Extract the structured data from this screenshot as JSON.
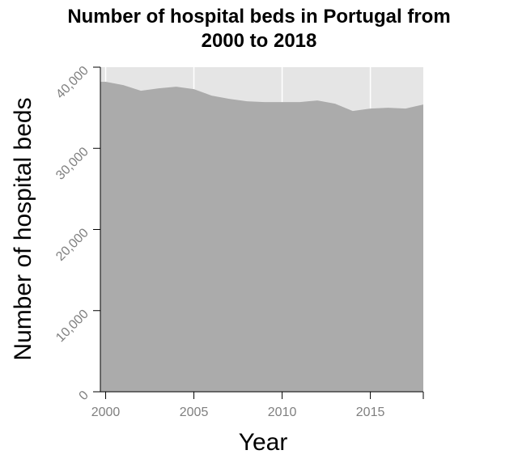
{
  "chart_data": {
    "type": "area",
    "title_lines": [
      "Number of hospital beds in Portugal from",
      "2000 to 2018"
    ],
    "xlabel": "Year",
    "ylabel": "Number of hospital beds",
    "x": [
      2000,
      2001,
      2002,
      2003,
      2004,
      2005,
      2006,
      2007,
      2008,
      2009,
      2010,
      2011,
      2012,
      2013,
      2014,
      2015,
      2016,
      2017,
      2018
    ],
    "values": [
      38200,
      37800,
      37100,
      37400,
      37600,
      37300,
      36500,
      36100,
      35800,
      35700,
      35700,
      35700,
      35900,
      35500,
      34600,
      34900,
      35000,
      34900,
      35400
    ],
    "xlim": [
      1999.7,
      2018.0
    ],
    "ylim": [
      0,
      40000
    ],
    "x_ticks": [
      2000,
      2005,
      2010,
      2015
    ],
    "x_tick_labels": [
      "2000",
      "2005",
      "2010",
      "2015"
    ],
    "y_ticks": [
      0,
      10000,
      20000,
      30000,
      40000
    ],
    "y_tick_labels": [
      "0",
      "10,000",
      "20,000",
      "30,000",
      "40,000"
    ],
    "grid": true,
    "colors": {
      "area_fill": "#ababab",
      "plot_background": "#e5e5e5",
      "grid": "#ffffff",
      "tick_text": "#7f7f7f"
    }
  }
}
